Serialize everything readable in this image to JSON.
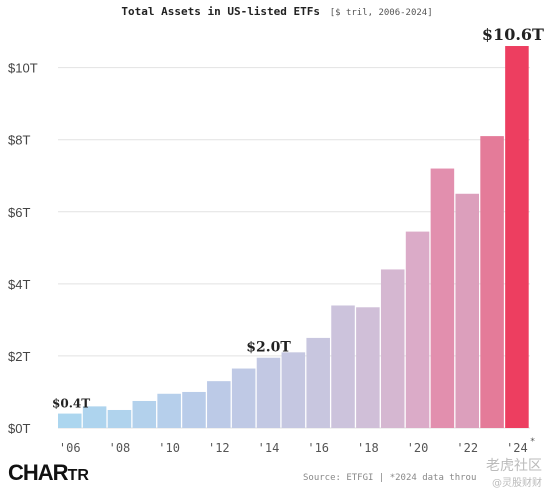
{
  "chart_data": {
    "type": "bar",
    "title": "Total Assets in US-listed ETFs",
    "subtitle": "[$ tril, 2006-2024]",
    "categories": [
      "2006",
      "2007",
      "2008",
      "2009",
      "2010",
      "2011",
      "2012",
      "2013",
      "2014",
      "2015",
      "2016",
      "2017",
      "2018",
      "2019",
      "2020",
      "2021",
      "2022",
      "2023",
      "2024"
    ],
    "values": [
      0.4,
      0.6,
      0.5,
      0.75,
      0.95,
      1.0,
      1.3,
      1.65,
      1.95,
      2.1,
      2.5,
      3.4,
      3.35,
      4.4,
      5.45,
      7.2,
      6.5,
      8.1,
      10.6
    ],
    "colors": [
      "#acd6ef",
      "#aed4ee",
      "#b0d3ed",
      "#b3d1ec",
      "#b6cfeb",
      "#b9cce9",
      "#bccae7",
      "#bfc9e5",
      "#c2c8e3",
      "#c5c7e1",
      "#c8c6df",
      "#ccc3dc",
      "#d0bfd8",
      "#d5b7d1",
      "#dbabc8",
      "#e28fae",
      "#dc9fbc",
      "#e47b99",
      "#ed3e60"
    ],
    "ylim": [
      0,
      11.1
    ],
    "yticks": [
      0,
      2,
      4,
      6,
      8,
      10
    ],
    "ytick_labels": [
      "$0T",
      "$2T",
      "$4T",
      "$6T",
      "$8T",
      "$10T"
    ],
    "xtick_labels": [
      "'06",
      "'08",
      "'10",
      "'12",
      "'14",
      "'16",
      "'18",
      "'20",
      "'22",
      "'24"
    ],
    "xtick_categories": [
      "2006",
      "2008",
      "2010",
      "2012",
      "2014",
      "2016",
      "2018",
      "2020",
      "2022",
      "2024"
    ],
    "xtick_note": "*",
    "annotations": [
      {
        "category": "2006",
        "value": 0.4,
        "text": "$0.4T"
      },
      {
        "category": "2014",
        "value": 1.95,
        "text": "$2.0T"
      },
      {
        "category": "2024",
        "value": 10.6,
        "text": "$10.6T"
      }
    ],
    "grid": true,
    "grid_color": "#e2e2e2"
  },
  "logo": {
    "main": "CHAR",
    "end": "TR"
  },
  "source": "Source: ETFGI | *2024 data throu",
  "watermark": {
    "line1": "老虎社区",
    "line2": "@灵股财财"
  }
}
